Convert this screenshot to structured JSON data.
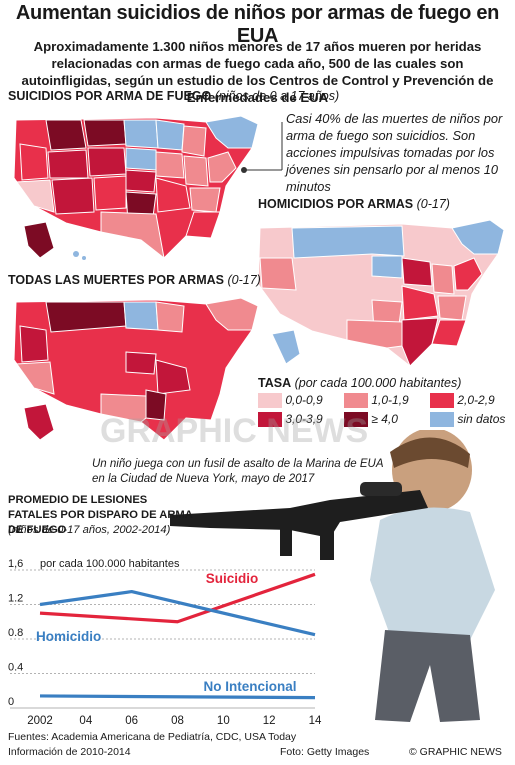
{
  "headline": "Aumentan suicidios de niños por armas de fuego en EUA",
  "intro": "Aproximadamente 1.300 niños menores de 17 años mueren por heridas relacionadas con armas de fuego cada año, 500 de las cuales son autoinfligidas, según un estudio de los Centros de Control y Prevención de Enfermedades de EUA",
  "maps": {
    "suicides": {
      "title": "SUICIDIOS POR ARMA DE FUEGO",
      "subtitle": "(niños de 0 a 17 años)"
    },
    "homicides": {
      "title": "HOMICIDIOS POR ARMAS",
      "subtitle": "(0-17)"
    },
    "all": {
      "title": "TODAS LAS MUERTES POR ARMAS",
      "subtitle": "(0-17)"
    }
  },
  "note": "Casi 40% de las muertes de niños por arma de fuego son suicidios. Son acciones impulsivas tomadas por los jóvenes sin pensarlo por al menos 10 minutos",
  "legend": {
    "title": "TASA",
    "subtitle": "(por cada 100.000 habitantes)",
    "items": [
      {
        "label": "0,0-0,9",
        "color": "#f7c9cc"
      },
      {
        "label": "1,0-1,9",
        "color": "#f08a8f"
      },
      {
        "label": "2,0-2,9",
        "color": "#e8304b"
      },
      {
        "label": "3,0-3,9",
        "color": "#c2163a"
      },
      {
        "label": "≥ 4,0",
        "color": "#7c0b24"
      },
      {
        "label": "sin datos",
        "color": "#8fb6df"
      }
    ]
  },
  "photo_caption": "Un niño juega con un fusil de asalto de la Marina de EUA en la Ciudad de Nueva York, mayo de 2017",
  "watermark": "GRAPHIC NEWS",
  "chart_data": {
    "type": "line",
    "title": "PROMEDIO DE LESIONES FATALES POR DISPARO DE ARMA DE FUEGO",
    "subtitle": "(niños de 0-17 años, 2002-2014)",
    "ylabel": "por cada 100.000 habitantes",
    "x": [
      2002,
      2006,
      2008,
      2014
    ],
    "x_tick_labels": [
      "2002",
      "04",
      "06",
      "08",
      "10",
      "12",
      "14"
    ],
    "y_ticks": [
      "0",
      "0.4",
      "0.8",
      "1.2",
      "1,6"
    ],
    "ylim": [
      0,
      1.6
    ],
    "xlim": [
      2002,
      2014
    ],
    "series": [
      {
        "name": "Suicidio",
        "color": "#e3243c",
        "x": [
          2002,
          2008,
          2014
        ],
        "values": [
          1.1,
          1.0,
          1.55
        ]
      },
      {
        "name": "Homicidio",
        "color": "#3a7fc2",
        "x": [
          2002,
          2006,
          2014
        ],
        "values": [
          1.2,
          1.35,
          0.85
        ]
      },
      {
        "name": "No Intencional",
        "color": "#3a7fc2",
        "x": [
          2002,
          2014
        ],
        "values": [
          0.14,
          0.12
        ]
      }
    ]
  },
  "footer": {
    "sources": "Fuentes: Academia Americana de Pediatría, CDC, USA Today",
    "info": "Información de 2010-2014",
    "photo": "Foto: Getty Images",
    "credit": "© GRAPHIC NEWS"
  }
}
